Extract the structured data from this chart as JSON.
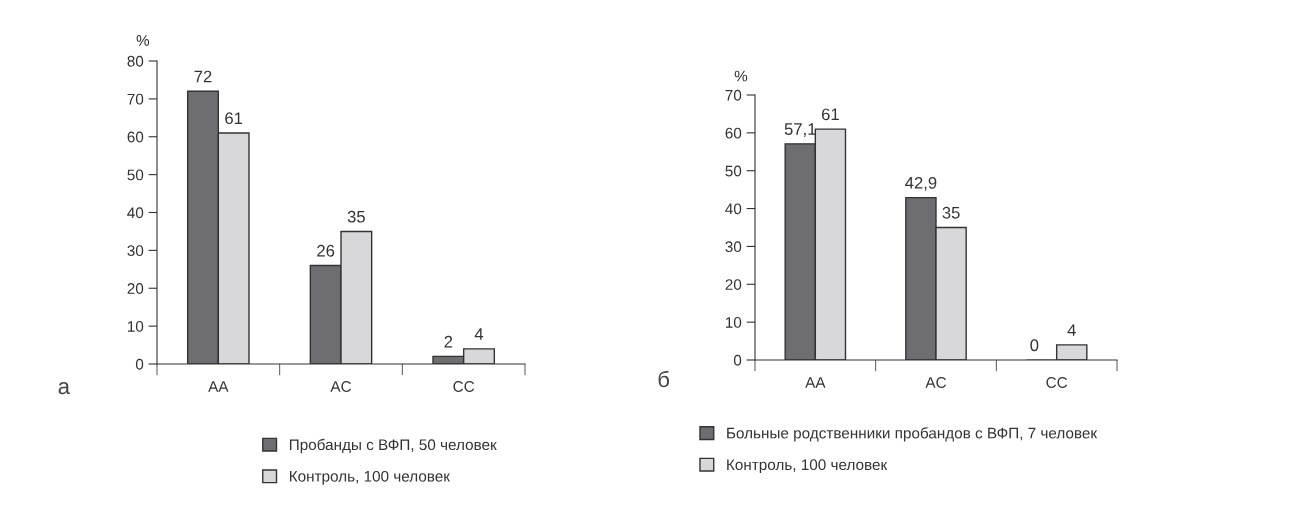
{
  "chart_data": [
    {
      "type": "bar",
      "ylabel": "%",
      "categories": [
        "AA",
        "AC",
        "CC"
      ],
      "ylim": [
        0,
        80
      ],
      "yticks": [
        0,
        10,
        20,
        30,
        40,
        50,
        60,
        70,
        80
      ],
      "legend": "bottom",
      "grid": false,
      "annotations": [
        "а"
      ],
      "series": [
        {
          "name": "Пробанды с ВФП, 50 человек",
          "color": "#6e6e72",
          "values": [
            72,
            26,
            2
          ],
          "value_labels": [
            "72",
            "26",
            "2"
          ]
        },
        {
          "name": "Контроль, 100 человек",
          "color": "#d8d8da",
          "values": [
            61,
            35,
            4
          ],
          "value_labels": [
            "61",
            "35",
            "4"
          ]
        }
      ]
    },
    {
      "type": "bar",
      "ylabel": "%",
      "categories": [
        "AA",
        "AC",
        "CC"
      ],
      "ylim": [
        0,
        70
      ],
      "yticks": [
        0,
        10,
        20,
        30,
        40,
        50,
        60,
        70
      ],
      "legend": "bottom",
      "grid": false,
      "annotations": [
        "б"
      ],
      "series": [
        {
          "name": "Больные родственники пробандов с ВФП, 7 человек",
          "color": "#6e6e72",
          "values": [
            57.1,
            42.9,
            0
          ],
          "value_labels": [
            "57,1",
            "42,9",
            "0"
          ]
        },
        {
          "name": "Контроль, 100 человек",
          "color": "#d8d8da",
          "values": [
            61,
            35,
            4
          ],
          "value_labels": [
            "61",
            "35",
            "4"
          ]
        }
      ]
    }
  ]
}
